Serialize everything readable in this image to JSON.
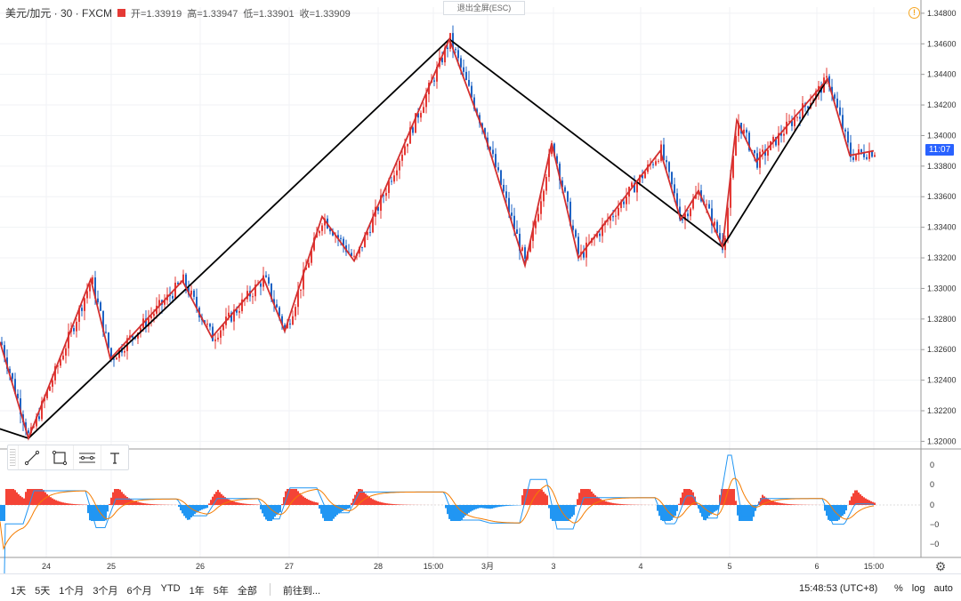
{
  "header": {
    "symbol": "美元/加元 · 30 · FXCM",
    "open": "开=1.33919",
    "high": "高=1.33947",
    "low": "低=1.33901",
    "close": "收=1.33909"
  },
  "exit_fullscreen": "退出全屏(ESC)",
  "current_price_tag": "11:07",
  "bottom_bar": {
    "ranges": [
      "1天",
      "5天",
      "1个月",
      "3个月",
      "6个月",
      "YTD",
      "1年",
      "5年",
      "全部"
    ],
    "goto": "前往到...",
    "clock": "15:48:53 (UTC+8)",
    "options": [
      "%",
      "log",
      "auto"
    ]
  },
  "colors": {
    "up": "#e53935",
    "down": "#1e63c4",
    "zigzag_small": "#d32f2f",
    "zigzag_big": "#000000",
    "macd_pos": "#f44336",
    "macd_neg": "#2196f3",
    "macd_line": "#2196f3",
    "signal_line": "#f57c00"
  },
  "chart_data": {
    "type": "line",
    "price_axis_ticks": [
      "1.34800",
      "1.34600",
      "1.34400",
      "1.34200",
      "1.34000",
      "1.33800",
      "1.33600",
      "1.33400",
      "1.33200",
      "1.33000",
      "1.32800",
      "1.32600",
      "1.32400",
      "1.32200",
      "1.32000"
    ],
    "price_ylim": [
      1.3195,
      1.3484
    ],
    "x_tick_labels": [
      "24",
      "25",
      "26",
      "27",
      "28",
      "15:00",
      "3月",
      "3",
      "4",
      "5",
      "6",
      "15:00"
    ],
    "indicator_axis_ticks": [
      "0",
      "0",
      "0",
      "−0",
      "−0"
    ],
    "zigzag_small": [
      {
        "t": 0,
        "p": 1.3265
      },
      {
        "t": 32,
        "p": 1.3202
      },
      {
        "t": 102,
        "p": 1.3306
      },
      {
        "t": 124,
        "p": 1.3254
      },
      {
        "t": 205,
        "p": 1.3305
      },
      {
        "t": 238,
        "p": 1.3268
      },
      {
        "t": 296,
        "p": 1.3307
      },
      {
        "t": 320,
        "p": 1.3272
      },
      {
        "t": 362,
        "p": 1.3347
      },
      {
        "t": 398,
        "p": 1.3318
      },
      {
        "t": 505,
        "p": 1.3463
      },
      {
        "t": 545,
        "p": 1.34
      },
      {
        "t": 590,
        "p": 1.3315
      },
      {
        "t": 620,
        "p": 1.3395
      },
      {
        "t": 650,
        "p": 1.332
      },
      {
        "t": 742,
        "p": 1.339
      },
      {
        "t": 765,
        "p": 1.3345
      },
      {
        "t": 785,
        "p": 1.3364
      },
      {
        "t": 812,
        "p": 1.3327
      },
      {
        "t": 828,
        "p": 1.341
      },
      {
        "t": 850,
        "p": 1.3383
      },
      {
        "t": 930,
        "p": 1.3437
      },
      {
        "t": 955,
        "p": 1.3387
      },
      {
        "t": 982,
        "p": 1.339
      }
    ],
    "zigzag_big": [
      {
        "t": -10,
        "p": 1.321
      },
      {
        "t": 32,
        "p": 1.3202
      },
      {
        "t": 505,
        "p": 1.3463
      },
      {
        "t": 812,
        "p": 1.3327
      },
      {
        "t": 930,
        "p": 1.3437
      }
    ]
  }
}
